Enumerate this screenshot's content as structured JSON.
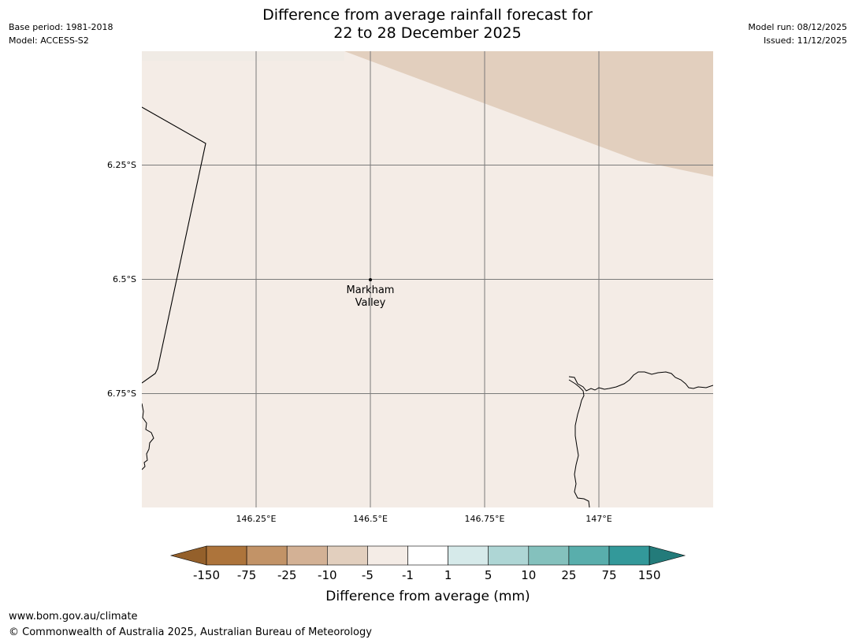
{
  "header": {
    "title_line1": "Difference from average rainfall forecast for",
    "title_line2": "22 to 28 December 2025",
    "base_period": "Base period: 1981-2018",
    "model": "Model: ACCESS-S2",
    "model_run": "Model run: 08/12/2025",
    "issued": "Issued: 11/12/2025"
  },
  "map": {
    "place_label_line1": "Markham",
    "place_label_line2": "Valley",
    "lat_labels": [
      "6.25°S",
      "6.5°S",
      "6.75°S"
    ],
    "lon_labels": [
      "146.25°E",
      "146.5°E",
      "146.75°E",
      "147°E"
    ],
    "colors": {
      "background_class": "#f4ece6",
      "drier_class": "#e2cfbe",
      "gridline": "#7a7a7a"
    }
  },
  "legend": {
    "title": "Difference from average (mm)",
    "tick_labels": [
      "-150",
      "-75",
      "-25",
      "-10",
      "-5",
      "-1",
      "1",
      "5",
      "10",
      "25",
      "75",
      "150"
    ],
    "colors": [
      "#94602b",
      "#ad743b",
      "#c29367",
      "#d3b195",
      "#e2cfbe",
      "#f4ece6",
      "#ffffff",
      "#d6eaea",
      "#aed6d5",
      "#84c1bd",
      "#59aeac",
      "#33999a",
      "#237b7a"
    ]
  },
  "footer": {
    "url": "www.bom.gov.au/climate",
    "copyright": "© Commonwealth of Australia 2025, Australian Bureau of Meteorology"
  }
}
